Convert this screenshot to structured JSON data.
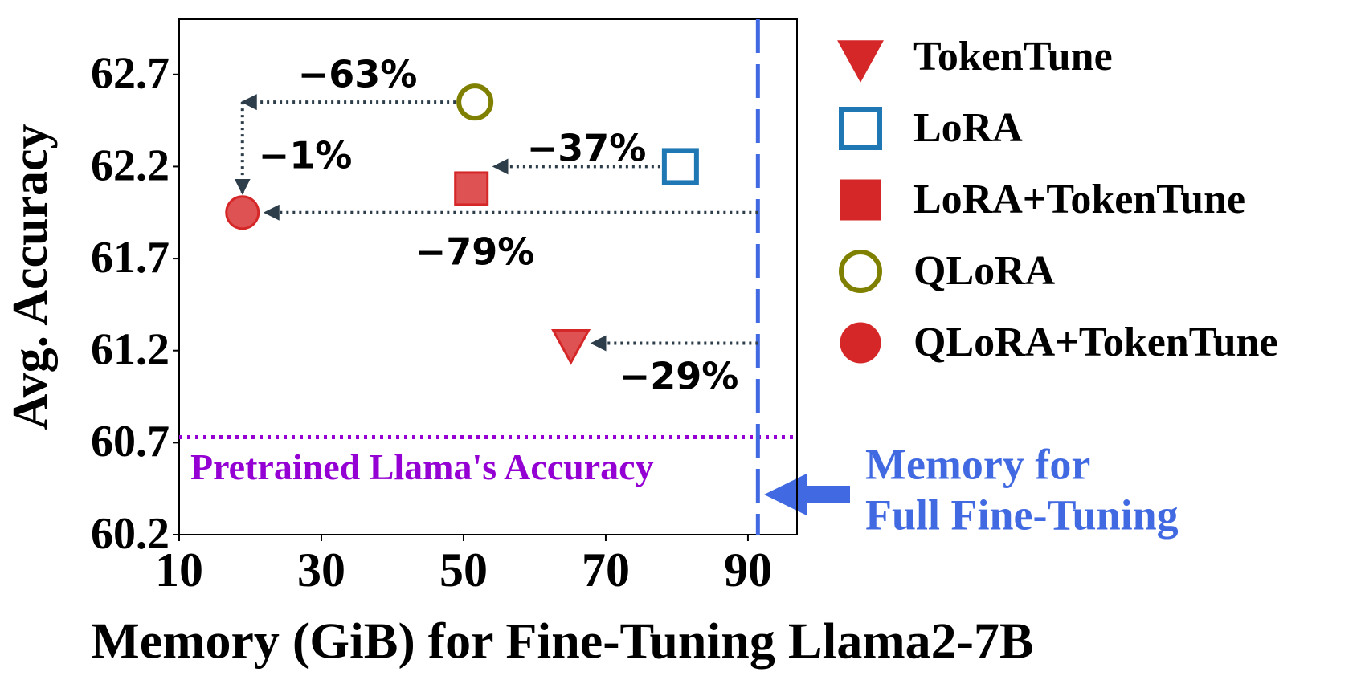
{
  "chart_data": {
    "type": "scatter",
    "xlabel": "Memory (GiB) for Fine-Tuning Llama2-7B",
    "ylabel": "Avg. Accuracy",
    "xlim": [
      10,
      96.9
    ],
    "ylim": [
      60.2,
      63.0
    ],
    "xticks": [
      10,
      30,
      50,
      70,
      90
    ],
    "yticks": [
      60.2,
      60.7,
      61.2,
      61.7,
      62.2,
      62.7
    ],
    "series": [
      {
        "name": "TokenTune",
        "color": "#d62728",
        "marker": "triangle-down",
        "filled": true,
        "x": [
          65.1
        ],
        "values": [
          61.24
        ]
      },
      {
        "name": "LoRA",
        "color": "#1f77b4",
        "marker": "square",
        "filled": false,
        "x": [
          80.5
        ],
        "values": [
          62.2
        ]
      },
      {
        "name": "LoRA+TokenTune",
        "color": "#d62728",
        "marker": "square",
        "filled": true,
        "x": [
          51.1
        ],
        "values": [
          62.08
        ]
      },
      {
        "name": "QLoRA",
        "color": "#808000",
        "marker": "circle",
        "filled": false,
        "x": [
          51.6
        ],
        "values": [
          62.55
        ]
      },
      {
        "name": "QLoRA+TokenTune",
        "color": "#d62728",
        "marker": "circle",
        "filled": true,
        "x": [
          18.9
        ],
        "values": [
          61.95
        ]
      }
    ],
    "hlines": [
      {
        "value": 60.73,
        "label": "Pretrained Llama's Accuracy",
        "color": "#9400d3"
      }
    ],
    "vlines": [
      {
        "value": 91.4,
        "label_lines": [
          "Memory for",
          "Full Fine-Tuning"
        ],
        "color": "#4169e1"
      }
    ],
    "annotations": [
      {
        "text": "−63%"
      },
      {
        "text": "−1%"
      },
      {
        "text": "−37%"
      },
      {
        "text": "−79%"
      },
      {
        "text": "−29%"
      }
    ]
  }
}
